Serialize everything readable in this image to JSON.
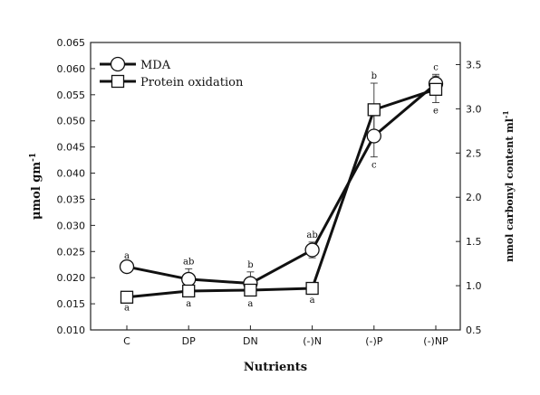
{
  "chart_data": {
    "type": "line",
    "xlabel": "Nutrients",
    "ylabel_left": "μmol gm-1",
    "ylabel_right": "nmol carbonyl content ml-1",
    "categories": [
      "C",
      "DP",
      "DN",
      "(-)N",
      "(-)P",
      "(-)NP"
    ],
    "ylim_left": [
      0.01,
      0.065
    ],
    "ylim_right": [
      0.5,
      3.75
    ],
    "yticks_left": [
      "0.010",
      "0.015",
      "0.020",
      "0.025",
      "0.030",
      "0.035",
      "0.040",
      "0.045",
      "0.050",
      "0.055",
      "0.060",
      "0.065"
    ],
    "yticks_right": [
      "0.5",
      "1.0",
      "1.5",
      "2.0",
      "2.5",
      "3.0",
      "3.5"
    ],
    "legend_position": "top-left",
    "series": [
      {
        "name": "MDA",
        "axis": "left",
        "marker": "circle",
        "values": [
          0.0221,
          0.0197,
          0.0189,
          0.0253,
          0.0471,
          0.0571
        ],
        "errors": [
          0.0007,
          0.002,
          0.0022,
          0.0015,
          0.004,
          0.0018
        ],
        "labels": [
          "a",
          "ab",
          "b",
          "ab",
          "c",
          "c"
        ]
      },
      {
        "name": "Protein oxidation",
        "axis": "right",
        "marker": "square",
        "values": [
          0.87,
          0.94,
          0.95,
          0.97,
          2.99,
          3.22
        ],
        "errors": [
          0.03,
          0.05,
          0.06,
          0.04,
          0.3,
          0.15
        ],
        "labels": [
          "a",
          "a",
          "a",
          "a",
          "b",
          "e"
        ]
      }
    ]
  }
}
